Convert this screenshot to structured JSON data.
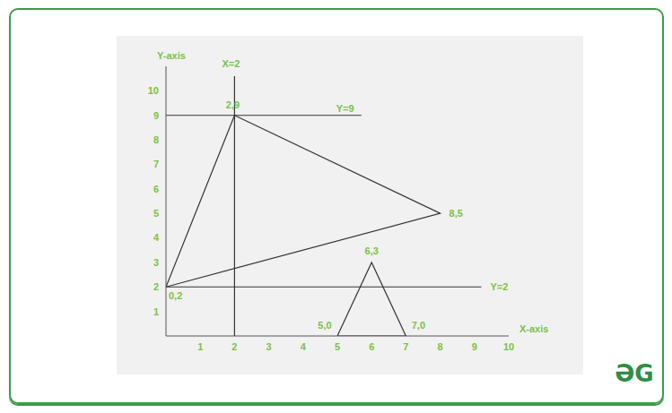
{
  "chart_data": {
    "type": "line",
    "xlabel": "X-axis",
    "ylabel": "Y-axis",
    "xlim": [
      0,
      10
    ],
    "ylim": [
      0,
      11
    ],
    "xticks": [
      1,
      2,
      3,
      4,
      5,
      6,
      7,
      8,
      9,
      10
    ],
    "yticks": [
      1,
      2,
      3,
      4,
      5,
      6,
      7,
      8,
      9,
      10
    ],
    "grid": false,
    "color": "#333333",
    "triangles": [
      {
        "vertices": [
          {
            "x": 0,
            "y": 2,
            "label": "0,2"
          },
          {
            "x": 2,
            "y": 9,
            "label": "2,9"
          },
          {
            "x": 8,
            "y": 5,
            "label": "8,5"
          }
        ]
      },
      {
        "vertices": [
          {
            "x": 5,
            "y": 0,
            "label": "5,0"
          },
          {
            "x": 6,
            "y": 3,
            "label": "6,3"
          },
          {
            "x": 7,
            "y": 0,
            "label": "7,0"
          }
        ]
      }
    ],
    "lines": [
      {
        "label": "X=2",
        "x": [
          2,
          2
        ],
        "y": [
          0,
          10.6
        ]
      },
      {
        "label": "Y=9",
        "x": [
          0,
          5.7
        ],
        "y": [
          9,
          9
        ]
      },
      {
        "label": "Y=2",
        "x": [
          0,
          9.2
        ],
        "y": [
          2,
          2
        ]
      }
    ]
  },
  "logo": "ƏG"
}
